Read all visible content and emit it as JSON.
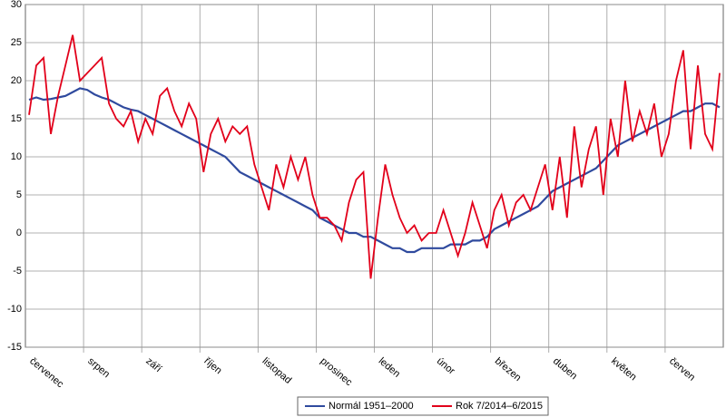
{
  "chart_data": {
    "type": "line",
    "categories": [
      null,
      "červenec",
      null,
      null,
      null,
      null,
      null,
      null,
      null,
      "srpen",
      null,
      null,
      null,
      null,
      null,
      null,
      null,
      "září",
      null,
      null,
      null,
      null,
      null,
      null,
      null,
      "říjen",
      null,
      null,
      null,
      null,
      null,
      null,
      null,
      "listopad",
      null,
      null,
      null,
      null,
      null,
      null,
      null,
      "prosinec",
      null,
      null,
      null,
      null,
      null,
      null,
      null,
      "leden",
      null,
      null,
      null,
      null,
      null,
      null,
      null,
      "únor",
      null,
      null,
      null,
      null,
      null,
      null,
      null,
      "březen",
      null,
      null,
      null,
      null,
      null,
      null,
      null,
      "duben",
      null,
      null,
      null,
      null,
      null,
      null,
      null,
      "květen",
      null,
      null,
      null,
      null,
      null,
      null,
      null,
      "červen",
      null,
      null,
      null,
      null,
      null,
      null
    ],
    "series": [
      {
        "name": "Normál 1951–2000",
        "color": "#2f4a9e",
        "values": [
          17.5,
          17.8,
          17.5,
          17.6,
          17.8,
          18.0,
          18.5,
          19.0,
          18.8,
          18.2,
          17.8,
          17.5,
          17.0,
          16.5,
          16.2,
          16.0,
          15.5,
          15.0,
          14.5,
          14.0,
          13.5,
          13.0,
          12.5,
          12.0,
          11.5,
          11.0,
          10.5,
          10.0,
          9.0,
          8.0,
          7.5,
          7.0,
          6.5,
          6.0,
          5.5,
          5.0,
          4.5,
          4.0,
          3.5,
          3.0,
          2.0,
          1.5,
          1.0,
          0.5,
          0.0,
          0.0,
          -0.5,
          -0.5,
          -1.0,
          -1.5,
          -2.0,
          -2.0,
          -2.5,
          -2.5,
          -2.0,
          -2.0,
          -2.0,
          -2.0,
          -1.5,
          -1.5,
          -1.5,
          -1.0,
          -1.0,
          -0.5,
          0.5,
          1.0,
          1.5,
          2.0,
          2.5,
          3.0,
          3.5,
          4.5,
          5.5,
          6.0,
          6.5,
          7.0,
          7.5,
          8.0,
          8.5,
          9.5,
          10.5,
          11.5,
          12.0,
          12.5,
          13.0,
          13.5,
          14.0,
          14.5,
          15.0,
          15.5,
          16.0,
          16.0,
          16.5,
          17.0,
          17.0,
          16.5
        ]
      },
      {
        "name": "Rok 7/2014–6/2015",
        "color": "#e2001a",
        "values": [
          15.5,
          22,
          23,
          13,
          18,
          22,
          26,
          20,
          21,
          22,
          23,
          17,
          15,
          14,
          16,
          12,
          15,
          13,
          18,
          19,
          16,
          14,
          17,
          15,
          8,
          13,
          15,
          12,
          14,
          13,
          14,
          9,
          6,
          3,
          9,
          6,
          10,
          7,
          10,
          5,
          2,
          2,
          1,
          -1,
          4,
          7,
          8,
          -6,
          2,
          9,
          5,
          2,
          0,
          1,
          -1,
          0,
          0,
          3,
          0,
          -3,
          0,
          4,
          1,
          -2,
          3,
          5,
          1,
          4,
          5,
          3,
          6,
          9,
          3,
          10,
          2,
          14,
          6,
          11,
          14,
          5,
          15,
          10,
          20,
          12,
          16,
          13,
          17,
          10,
          13,
          20,
          24,
          11,
          22,
          13,
          11,
          21
        ]
      }
    ],
    "ylim": [
      -15,
      30
    ],
    "yticks": [
      -15,
      -10,
      -5,
      0,
      5,
      10,
      15,
      20,
      25,
      30
    ],
    "grid": true
  }
}
